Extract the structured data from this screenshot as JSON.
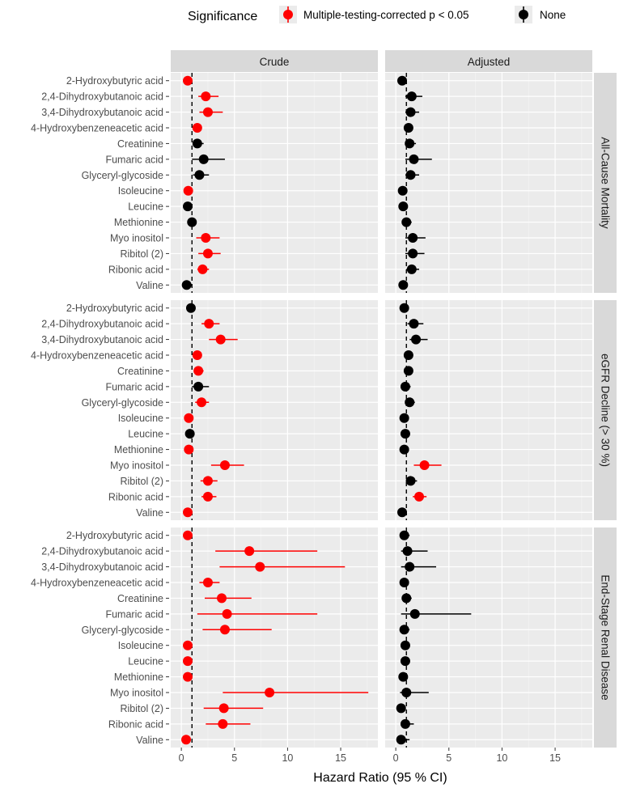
{
  "chart_data": {
    "type": "forest",
    "xlabel": "Hazard Ratio (95 % CI)",
    "xlim": [
      -1,
      18.5
    ],
    "xticks": [
      0,
      5,
      10,
      15
    ],
    "reference_line": 1,
    "legend": {
      "title": "Significance",
      "entries": [
        {
          "label": "Multiple-testing-corrected p < 0.05",
          "color": "#ff0000"
        },
        {
          "label": "None",
          "color": "#000000"
        }
      ]
    },
    "columns": [
      "Crude",
      "Adjusted"
    ],
    "metabolites": [
      "2-Hydroxybutyric acid",
      "2,4-Dihydroxybutanoic acid",
      "3,4-Dihydroxybutanoic acid",
      "4-Hydroxybenzeneacetic acid",
      "Creatinine",
      "Fumaric acid",
      "Glyceryl-glycoside",
      "Isoleucine",
      "Leucine",
      "Methionine",
      "Myo inositol",
      "Ribitol (2)",
      "Ribonic acid",
      "Valine"
    ],
    "outcomes": [
      {
        "name": "All-Cause Mortality",
        "crude": [
          {
            "hr": 0.6,
            "lo": 0.45,
            "hi": 0.75,
            "sig": true
          },
          {
            "hr": 2.3,
            "lo": 1.6,
            "hi": 3.5,
            "sig": true
          },
          {
            "hr": 2.5,
            "lo": 1.7,
            "hi": 3.9,
            "sig": true
          },
          {
            "hr": 1.5,
            "lo": 1.2,
            "hi": 1.8,
            "sig": true
          },
          {
            "hr": 1.5,
            "lo": 1.1,
            "hi": 2.1,
            "sig": false
          },
          {
            "hr": 2.1,
            "lo": 1.0,
            "hi": 4.1,
            "sig": false
          },
          {
            "hr": 1.7,
            "lo": 1.1,
            "hi": 2.6,
            "sig": false
          },
          {
            "hr": 0.65,
            "lo": 0.5,
            "hi": 0.8,
            "sig": true
          },
          {
            "hr": 0.6,
            "lo": 0.45,
            "hi": 0.8,
            "sig": false
          },
          {
            "hr": 1.0,
            "lo": 0.75,
            "hi": 1.3,
            "sig": false
          },
          {
            "hr": 2.3,
            "lo": 1.4,
            "hi": 3.6,
            "sig": true
          },
          {
            "hr": 2.5,
            "lo": 1.6,
            "hi": 3.7,
            "sig": true
          },
          {
            "hr": 2.0,
            "lo": 1.5,
            "hi": 2.6,
            "sig": true
          },
          {
            "hr": 0.5,
            "lo": 0.35,
            "hi": 0.7,
            "sig": false
          }
        ],
        "adjusted": [
          {
            "hr": 0.6,
            "lo": 0.4,
            "hi": 0.9,
            "sig": false
          },
          {
            "hr": 1.5,
            "lo": 0.9,
            "hi": 2.5,
            "sig": false
          },
          {
            "hr": 1.4,
            "lo": 0.9,
            "hi": 2.2,
            "sig": false
          },
          {
            "hr": 1.2,
            "lo": 0.9,
            "hi": 1.5,
            "sig": false
          },
          {
            "hr": 1.3,
            "lo": 0.9,
            "hi": 1.9,
            "sig": false
          },
          {
            "hr": 1.7,
            "lo": 0.9,
            "hi": 3.4,
            "sig": false
          },
          {
            "hr": 1.4,
            "lo": 0.9,
            "hi": 2.2,
            "sig": false
          },
          {
            "hr": 0.65,
            "lo": 0.45,
            "hi": 0.9,
            "sig": false
          },
          {
            "hr": 0.7,
            "lo": 0.5,
            "hi": 0.95,
            "sig": false
          },
          {
            "hr": 1.0,
            "lo": 0.7,
            "hi": 1.5,
            "sig": false
          },
          {
            "hr": 1.6,
            "lo": 0.9,
            "hi": 2.8,
            "sig": false
          },
          {
            "hr": 1.6,
            "lo": 0.9,
            "hi": 2.7,
            "sig": false
          },
          {
            "hr": 1.5,
            "lo": 1.0,
            "hi": 2.2,
            "sig": false
          },
          {
            "hr": 0.7,
            "lo": 0.4,
            "hi": 1.1,
            "sig": false
          }
        ]
      },
      {
        "name": "eGFR Decline (> 30 %)",
        "crude": [
          {
            "hr": 0.9,
            "lo": 0.7,
            "hi": 1.1,
            "sig": false
          },
          {
            "hr": 2.6,
            "lo": 1.9,
            "hi": 3.6,
            "sig": true
          },
          {
            "hr": 3.7,
            "lo": 2.6,
            "hi": 5.3,
            "sig": true
          },
          {
            "hr": 1.5,
            "lo": 1.2,
            "hi": 1.9,
            "sig": true
          },
          {
            "hr": 1.6,
            "lo": 1.2,
            "hi": 2.1,
            "sig": true
          },
          {
            "hr": 1.6,
            "lo": 1.0,
            "hi": 2.6,
            "sig": false
          },
          {
            "hr": 1.9,
            "lo": 1.3,
            "hi": 2.6,
            "sig": true
          },
          {
            "hr": 0.7,
            "lo": 0.55,
            "hi": 0.85,
            "sig": true
          },
          {
            "hr": 0.8,
            "lo": 0.6,
            "hi": 1.0,
            "sig": false
          },
          {
            "hr": 0.7,
            "lo": 0.55,
            "hi": 0.85,
            "sig": true
          },
          {
            "hr": 4.1,
            "lo": 2.8,
            "hi": 5.9,
            "sig": true
          },
          {
            "hr": 2.5,
            "lo": 1.8,
            "hi": 3.4,
            "sig": true
          },
          {
            "hr": 2.5,
            "lo": 1.9,
            "hi": 3.3,
            "sig": true
          },
          {
            "hr": 0.6,
            "lo": 0.45,
            "hi": 0.8,
            "sig": true
          }
        ],
        "adjusted": [
          {
            "hr": 0.8,
            "lo": 0.55,
            "hi": 1.1,
            "sig": false
          },
          {
            "hr": 1.7,
            "lo": 1.1,
            "hi": 2.6,
            "sig": false
          },
          {
            "hr": 1.9,
            "lo": 1.3,
            "hi": 3.0,
            "sig": false
          },
          {
            "hr": 1.2,
            "lo": 0.9,
            "hi": 1.6,
            "sig": false
          },
          {
            "hr": 1.2,
            "lo": 0.9,
            "hi": 1.6,
            "sig": false
          },
          {
            "hr": 0.9,
            "lo": 0.6,
            "hi": 1.4,
            "sig": false
          },
          {
            "hr": 1.3,
            "lo": 0.9,
            "hi": 1.8,
            "sig": false
          },
          {
            "hr": 0.8,
            "lo": 0.55,
            "hi": 1.1,
            "sig": false
          },
          {
            "hr": 0.9,
            "lo": 0.65,
            "hi": 1.25,
            "sig": false
          },
          {
            "hr": 0.8,
            "lo": 0.6,
            "hi": 1.1,
            "sig": false
          },
          {
            "hr": 2.7,
            "lo": 1.7,
            "hi": 4.3,
            "sig": true
          },
          {
            "hr": 1.4,
            "lo": 1.0,
            "hi": 2.0,
            "sig": false
          },
          {
            "hr": 2.2,
            "lo": 1.6,
            "hi": 2.9,
            "sig": true
          },
          {
            "hr": 0.6,
            "lo": 0.4,
            "hi": 0.9,
            "sig": false
          }
        ]
      },
      {
        "name": "End-Stage Renal Disease",
        "crude": [
          {
            "hr": 0.6,
            "lo": 0.45,
            "hi": 0.75,
            "sig": true
          },
          {
            "hr": 6.4,
            "lo": 3.2,
            "hi": 12.8,
            "sig": true
          },
          {
            "hr": 7.4,
            "lo": 3.6,
            "hi": 15.4,
            "sig": true
          },
          {
            "hr": 2.5,
            "lo": 1.7,
            "hi": 3.6,
            "sig": true
          },
          {
            "hr": 3.8,
            "lo": 2.2,
            "hi": 6.6,
            "sig": true
          },
          {
            "hr": 4.3,
            "lo": 1.5,
            "hi": 12.8,
            "sig": true
          },
          {
            "hr": 4.1,
            "lo": 2.0,
            "hi": 8.5,
            "sig": true
          },
          {
            "hr": 0.6,
            "lo": 0.45,
            "hi": 0.8,
            "sig": true
          },
          {
            "hr": 0.6,
            "lo": 0.45,
            "hi": 0.8,
            "sig": true
          },
          {
            "hr": 0.6,
            "lo": 0.45,
            "hi": 0.8,
            "sig": true
          },
          {
            "hr": 8.3,
            "lo": 3.9,
            "hi": 17.6,
            "sig": true
          },
          {
            "hr": 4.0,
            "lo": 2.1,
            "hi": 7.7,
            "sig": true
          },
          {
            "hr": 3.9,
            "lo": 2.3,
            "hi": 6.5,
            "sig": true
          },
          {
            "hr": 0.45,
            "lo": 0.3,
            "hi": 0.65,
            "sig": true
          }
        ],
        "adjusted": [
          {
            "hr": 0.8,
            "lo": 0.5,
            "hi": 1.3,
            "sig": false
          },
          {
            "hr": 1.1,
            "lo": 0.5,
            "hi": 3.0,
            "sig": false
          },
          {
            "hr": 1.3,
            "lo": 0.5,
            "hi": 3.8,
            "sig": false
          },
          {
            "hr": 0.8,
            "lo": 0.55,
            "hi": 1.1,
            "sig": false
          },
          {
            "hr": 1.0,
            "lo": 0.7,
            "hi": 1.5,
            "sig": false
          },
          {
            "hr": 1.8,
            "lo": 0.5,
            "hi": 7.1,
            "sig": false
          },
          {
            "hr": 0.8,
            "lo": 0.5,
            "hi": 1.3,
            "sig": false
          },
          {
            "hr": 0.9,
            "lo": 0.65,
            "hi": 1.2,
            "sig": false
          },
          {
            "hr": 0.9,
            "lo": 0.65,
            "hi": 1.2,
            "sig": false
          },
          {
            "hr": 0.7,
            "lo": 0.5,
            "hi": 1.0,
            "sig": false
          },
          {
            "hr": 1.0,
            "lo": 0.4,
            "hi": 3.1,
            "sig": false
          },
          {
            "hr": 0.5,
            "lo": 0.3,
            "hi": 0.8,
            "sig": false
          },
          {
            "hr": 0.9,
            "lo": 0.5,
            "hi": 1.7,
            "sig": false
          },
          {
            "hr": 0.5,
            "lo": 0.3,
            "hi": 1.3,
            "sig": false
          }
        ]
      }
    ]
  }
}
